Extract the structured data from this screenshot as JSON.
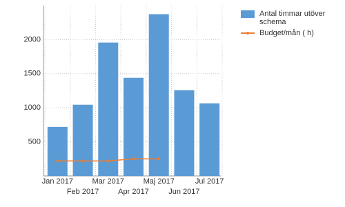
{
  "chart_data": {
    "type": "bar",
    "categories": [
      "Jan 2017",
      "Feb 2017",
      "Mar 2017",
      "Apr 2017",
      "Maj 2017",
      "Jun 2017",
      "Jul 2017"
    ],
    "series": [
      {
        "name": "Antal timmar utöver schema",
        "color": "#5b9bd5",
        "type": "bar",
        "values": [
          720,
          1045,
          1957,
          1440,
          2373,
          1258,
          1065
        ]
      },
      {
        "name": "Budget/mån ( h)",
        "color": "#ed7d31",
        "type": "line",
        "values": [
          220,
          220,
          220,
          250,
          250,
          null,
          null
        ]
      }
    ],
    "ylim": [
      0,
      2500
    ],
    "yticks": [
      500,
      1000,
      1500,
      2000
    ],
    "grid": true,
    "legend": "top-right"
  }
}
